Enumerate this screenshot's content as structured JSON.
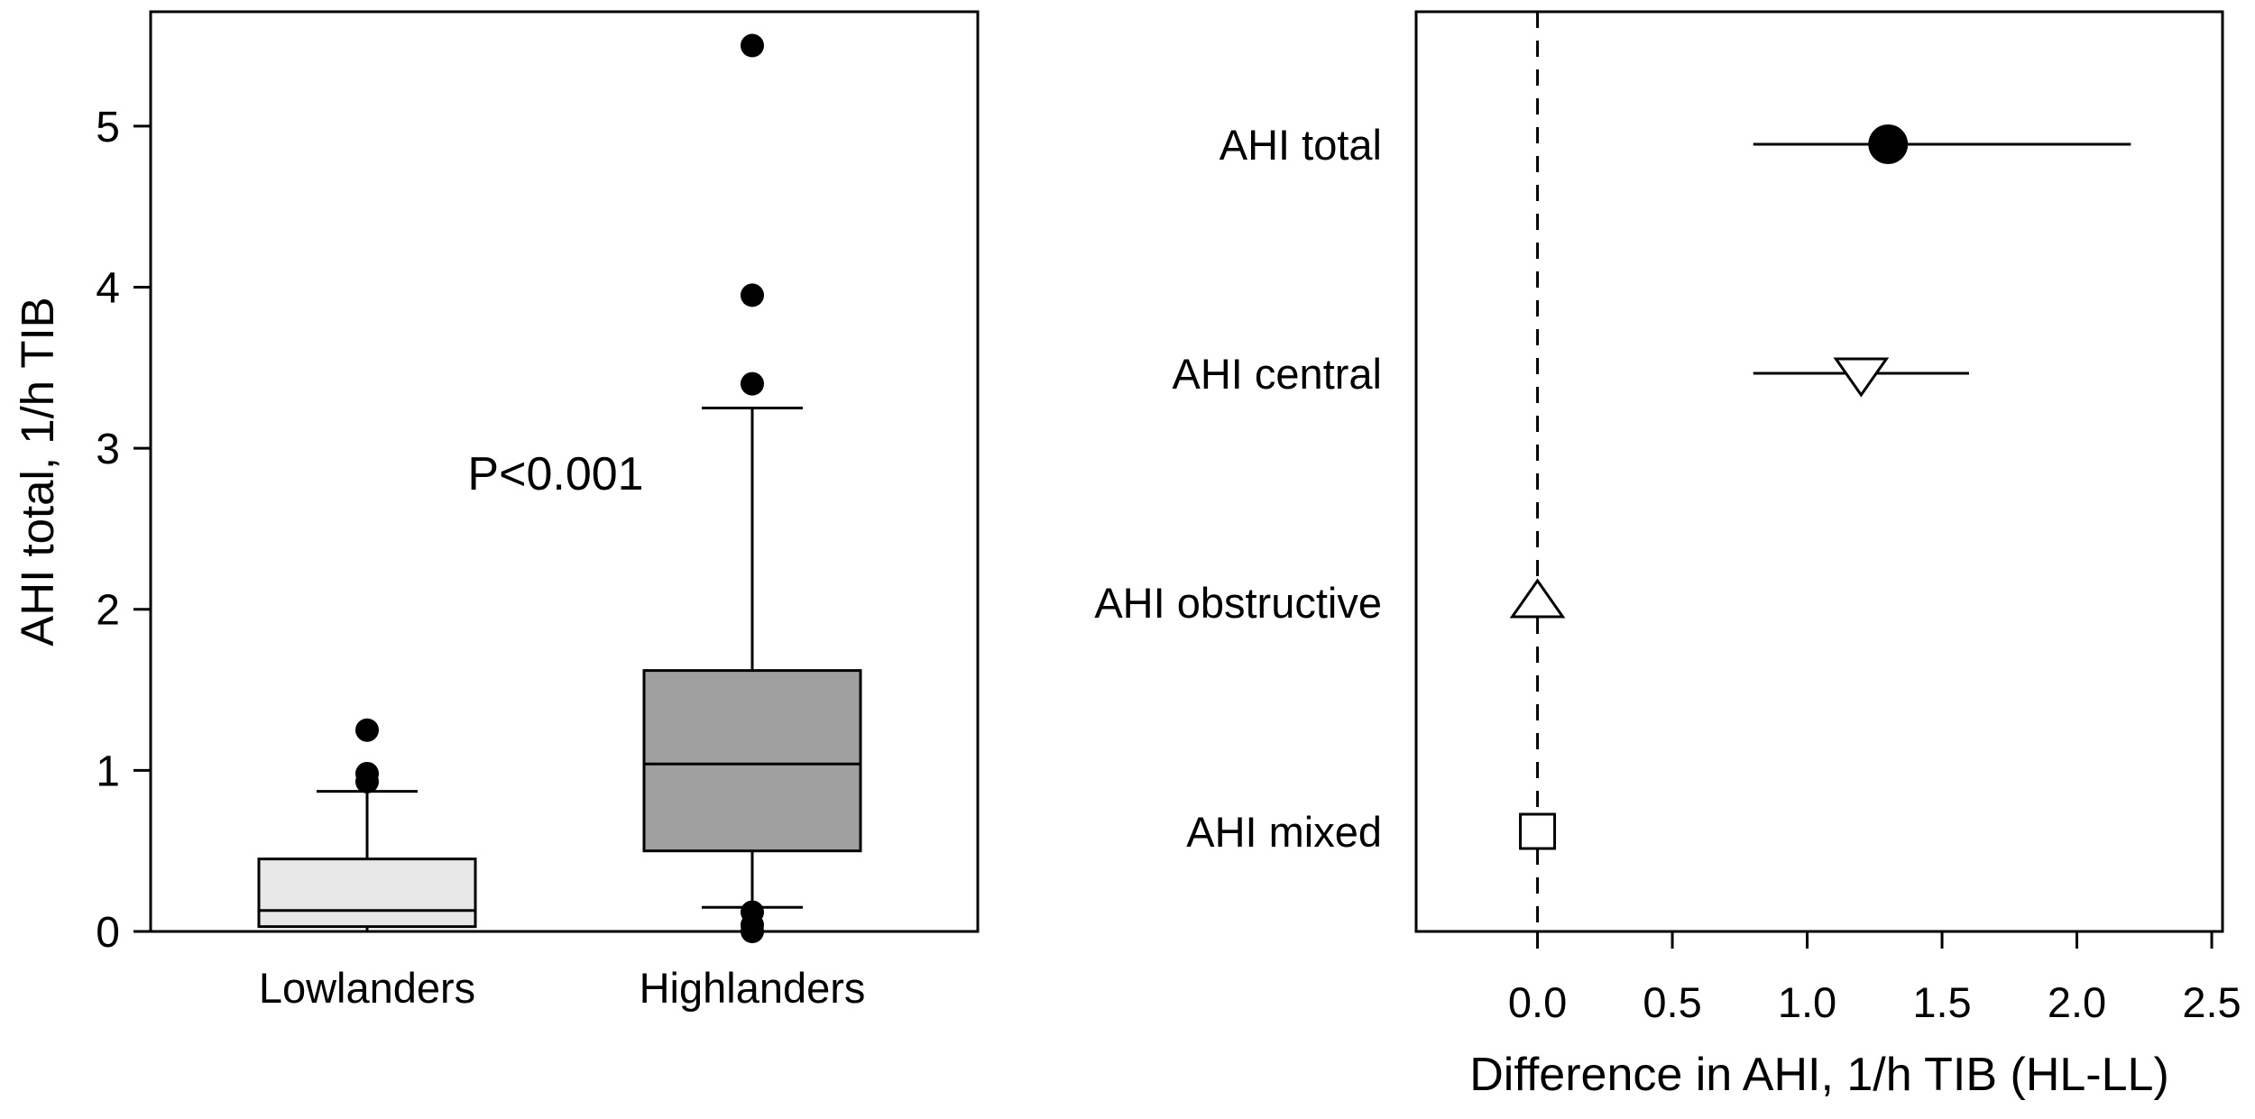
{
  "background": "#ffffff",
  "foreground": "#000000",
  "chart_data": [
    {
      "type": "box",
      "panel": "left",
      "title": "",
      "ylabel": "AHI total, 1/h TIB",
      "ylim": [
        0,
        5.71
      ],
      "yticks": [
        0,
        1,
        2,
        3,
        4,
        5
      ],
      "annotation": "P<0.001",
      "grid": false,
      "categories": [
        "Lowlanders",
        "Highlanders"
      ],
      "series": [
        {
          "name": "Lowlanders",
          "q1": 0.03,
          "median": 0.13,
          "q3": 0.45,
          "whisker_low": 0.0,
          "whisker_high": 0.87,
          "outliers": [
            0.93,
            0.98,
            1.25
          ],
          "fill": "#e7e7e7"
        },
        {
          "name": "Highlanders",
          "q1": 0.5,
          "median": 1.04,
          "q3": 1.62,
          "whisker_low": 0.15,
          "whisker_high": 3.25,
          "outliers": [
            5.5,
            3.95,
            3.4,
            0.12,
            0.04,
            0.0
          ],
          "fill": "#9f9f9f"
        }
      ]
    },
    {
      "type": "scatter",
      "panel": "right",
      "title": "",
      "xlabel": "Difference in AHI, 1/h TIB (HL-LL)",
      "xlim": [
        -0.45,
        2.54
      ],
      "xticks": [
        "0.0",
        "0.5",
        "1.0",
        "1.5",
        "2.0",
        "2.5"
      ],
      "reference_x": 0.0,
      "grid": false,
      "rows": [
        {
          "label": "AHI total",
          "marker": "filled-circle",
          "value": 1.3,
          "ci_low": 0.8,
          "ci_high": 2.2
        },
        {
          "label": "AHI central",
          "marker": "open-triangle-down",
          "value": 1.2,
          "ci_low": 0.8,
          "ci_high": 1.6
        },
        {
          "label": "AHI obstructive",
          "marker": "open-triangle-up",
          "value": 0.0,
          "ci_low": 0.0,
          "ci_high": 0.0
        },
        {
          "label": "AHI mixed",
          "marker": "open-square",
          "value": 0.0,
          "ci_low": 0.0,
          "ci_high": 0.0
        }
      ]
    }
  ]
}
